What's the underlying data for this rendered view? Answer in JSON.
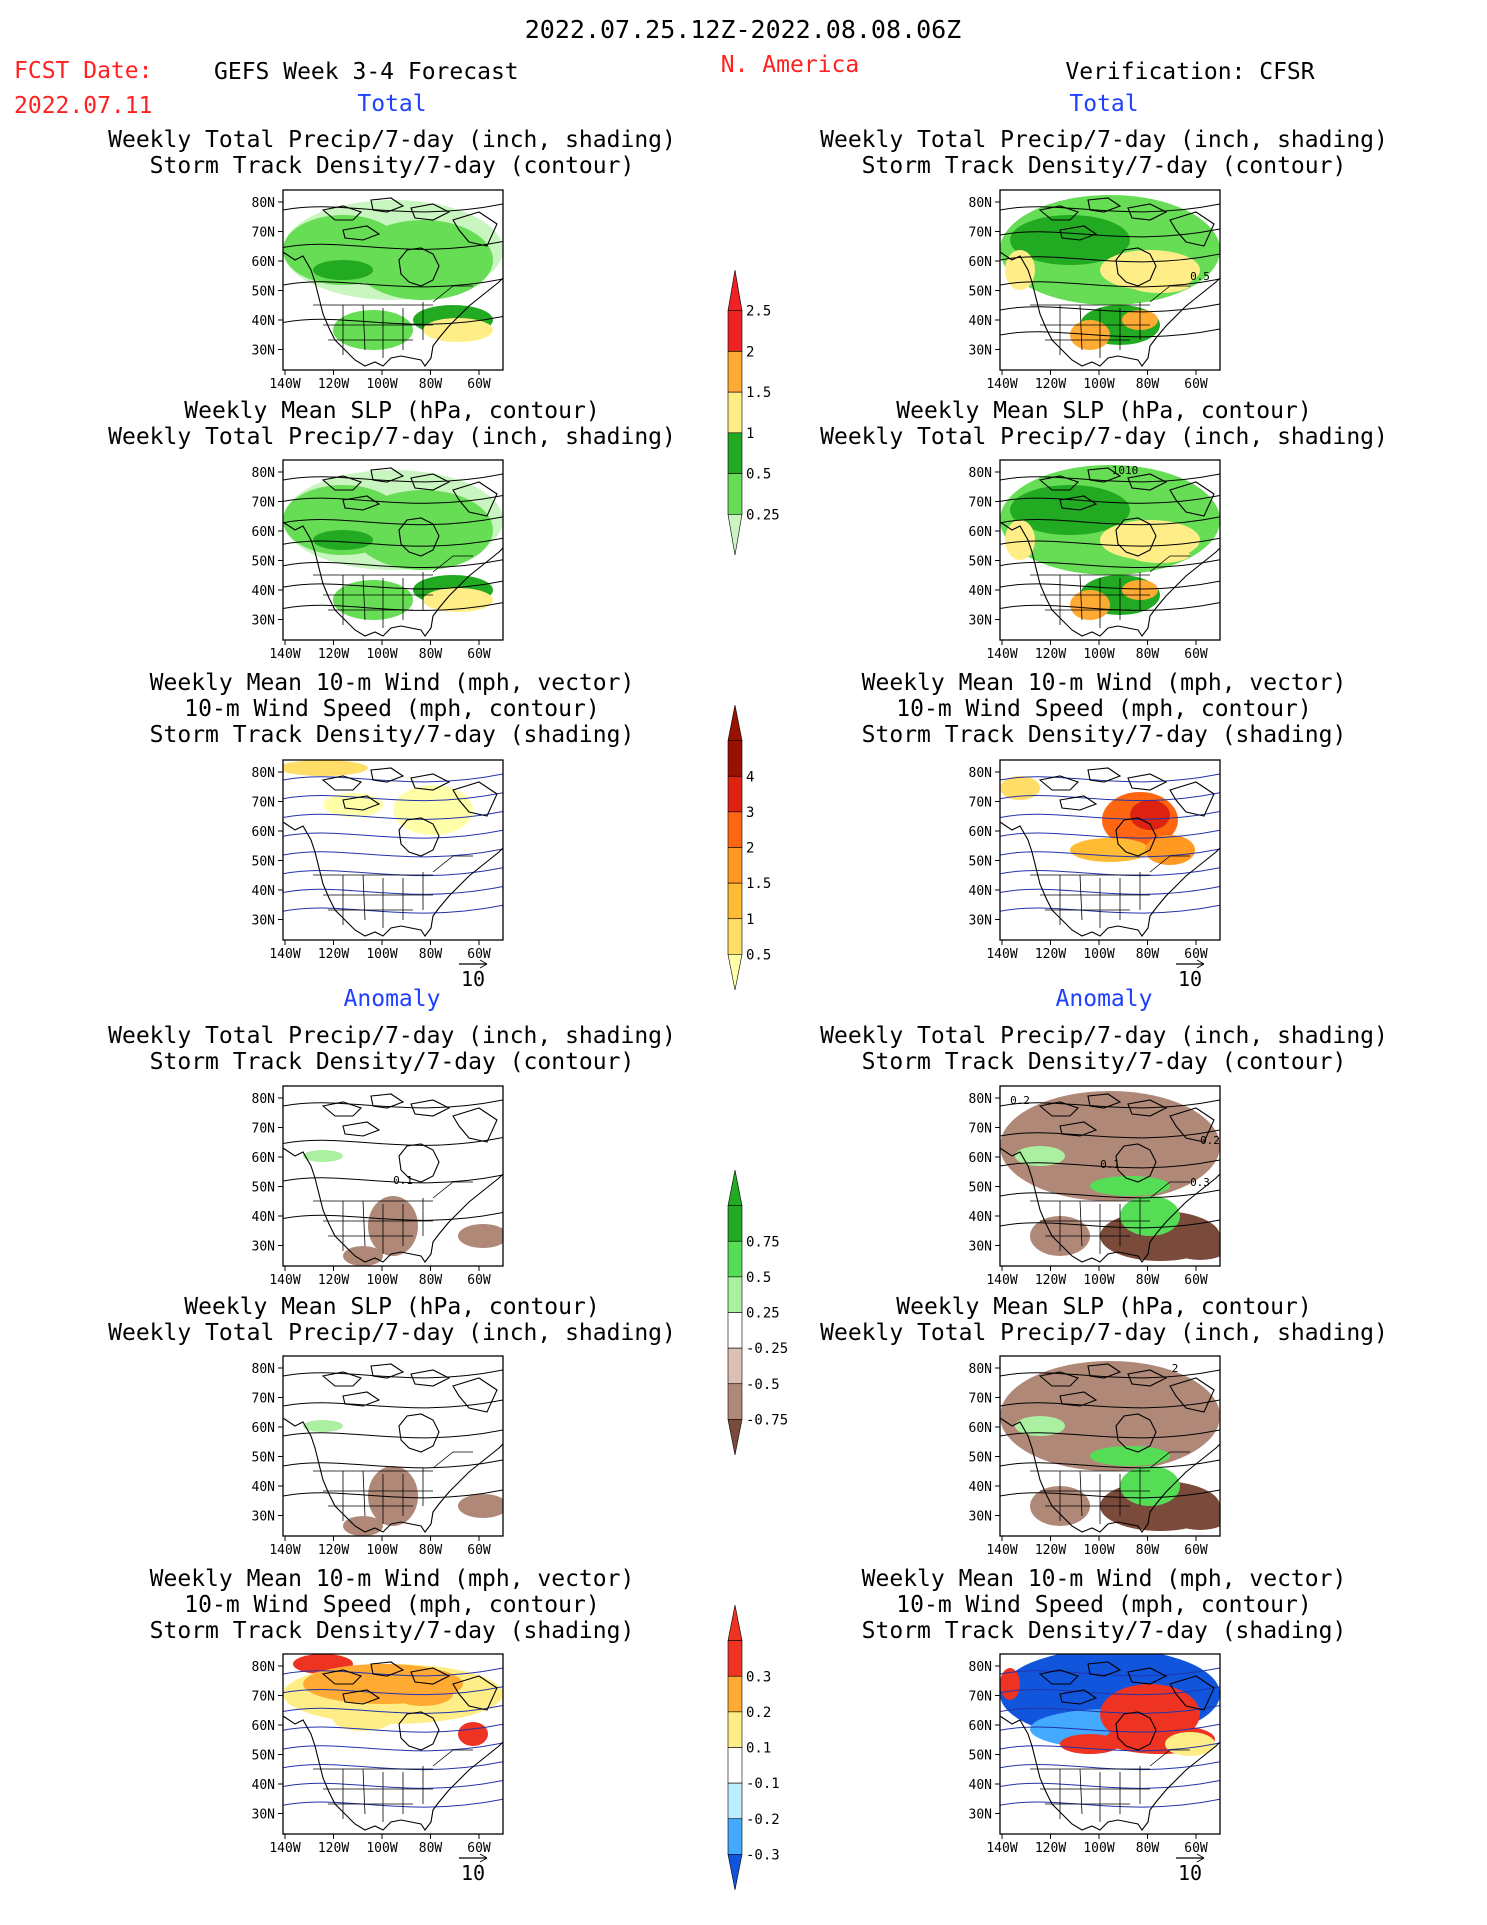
{
  "header": {
    "date_range": "2022.07.25.12Z-2022.08.08.06Z",
    "fcst_label": "FCST Date:",
    "fcst_date": "2022.07.11",
    "model_title": "GEFS Week 3-4 Forecast",
    "region": "N. America",
    "verification": "Verification: CFSR",
    "section_total": "Total",
    "section_anomaly": "Anomaly"
  },
  "colors": {
    "red_text": "#ff2020",
    "blue_text": "#2040ff",
    "precip_total": [
      "#c8f5c0",
      "#66dd55",
      "#22aa22",
      "#ffee88",
      "#ffaa33",
      "#ee2222"
    ],
    "storm_total": [
      "#ffffaa",
      "#ffdd66",
      "#ffbb33",
      "#ff9922",
      "#ff6611",
      "#dd2211",
      "#991100"
    ],
    "precip_anom": [
      "#7a4a3a",
      "#b08878",
      "#dcc0b4",
      "#ffffff",
      "#aaf0a0",
      "#55dd55",
      "#22aa22"
    ],
    "storm_anom": [
      "#1155dd",
      "#44aaff",
      "#bbeeff",
      "#ffffff",
      "#ffee88",
      "#ffaa33",
      "#ee3322"
    ]
  },
  "panels": {
    "titles": {
      "precip_storm": [
        "Weekly Total Precip/7-day (inch, shading)",
        "Storm Track Density/7-day (contour)"
      ],
      "slp_precip": [
        "Weekly Mean SLP (hPa, contour)",
        "Weekly Total Precip/7-day (inch, shading)"
      ],
      "wind_storm": [
        "Weekly Mean 10-m Wind (mph, vector)",
        "10-m Wind Speed (mph, contour)",
        "Storm Track Density/7-day (shading)"
      ]
    },
    "lat_labels": [
      "80N",
      "70N",
      "60N",
      "50N",
      "40N",
      "30N"
    ],
    "lon_labels": [
      "140W",
      "120W",
      "100W",
      "80W",
      "60W"
    ],
    "vector_ref": "10",
    "contour_labels": {
      "verif_precip_storm": "0.5",
      "verif_slp": "1010",
      "anom_fcst_precip_storm": "0.1",
      "anom_verif_precip_storm_a": "0.2",
      "anom_verif_precip_storm_b": "0.1",
      "anom_verif_precip_storm_c": "0.2",
      "anom_verif_precip_storm_d": "0.3",
      "anom_verif_slp": "2"
    }
  },
  "colorbars": {
    "precip_total": [
      "0.25",
      "0.5",
      "1",
      "1.5",
      "2",
      "2.5"
    ],
    "storm_total": [
      "0.5",
      "1",
      "1.5",
      "2",
      "3",
      "4"
    ],
    "precip_anom": [
      "-0.75",
      "-0.5",
      "-0.25",
      "0.25",
      "0.5",
      "0.75"
    ],
    "storm_anom": [
      "-0.3",
      "-0.2",
      "-0.1",
      "0.1",
      "0.2",
      "0.3"
    ]
  }
}
